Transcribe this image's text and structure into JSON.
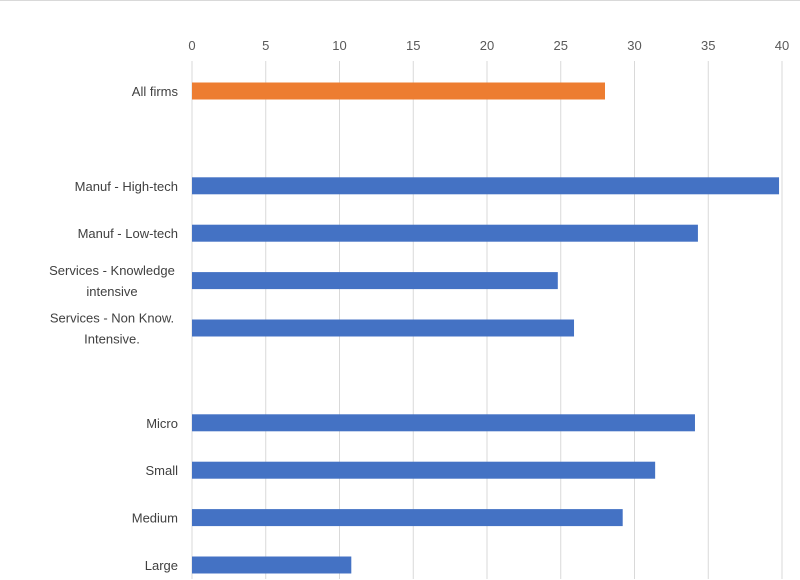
{
  "chart_data": {
    "type": "bar",
    "orientation": "horizontal",
    "axis_position": "top",
    "title": "",
    "xlabel": "",
    "ylabel": "",
    "xlim": [
      0,
      40
    ],
    "ticks": [
      0,
      5,
      10,
      15,
      20,
      25,
      30,
      35,
      40
    ],
    "grid": true,
    "legend": "none",
    "colors": {
      "highlight": "#ed7d31",
      "default": "#4472c4"
    },
    "categories": [
      {
        "label": [
          "All firms"
        ],
        "value": 28.0,
        "highlight": true,
        "slot": 0
      },
      {
        "label": [
          "Manuf - High-tech"
        ],
        "value": 39.8,
        "highlight": false,
        "slot": 2
      },
      {
        "label": [
          "Manuf - Low-tech"
        ],
        "value": 34.3,
        "highlight": false,
        "slot": 3
      },
      {
        "label": [
          "Services - Knowledge",
          "intensive"
        ],
        "value": 24.8,
        "highlight": false,
        "slot": 4
      },
      {
        "label": [
          "Services - Non Know.",
          "Intensive."
        ],
        "value": 25.9,
        "highlight": false,
        "slot": 5
      },
      {
        "label": [
          "Micro"
        ],
        "value": 34.1,
        "highlight": false,
        "slot": 7
      },
      {
        "label": [
          "Small"
        ],
        "value": 31.4,
        "highlight": false,
        "slot": 8
      },
      {
        "label": [
          "Medium"
        ],
        "value": 29.2,
        "highlight": false,
        "slot": 9
      },
      {
        "label": [
          "Large"
        ],
        "value": 10.8,
        "highlight": false,
        "slot": 10
      }
    ]
  }
}
